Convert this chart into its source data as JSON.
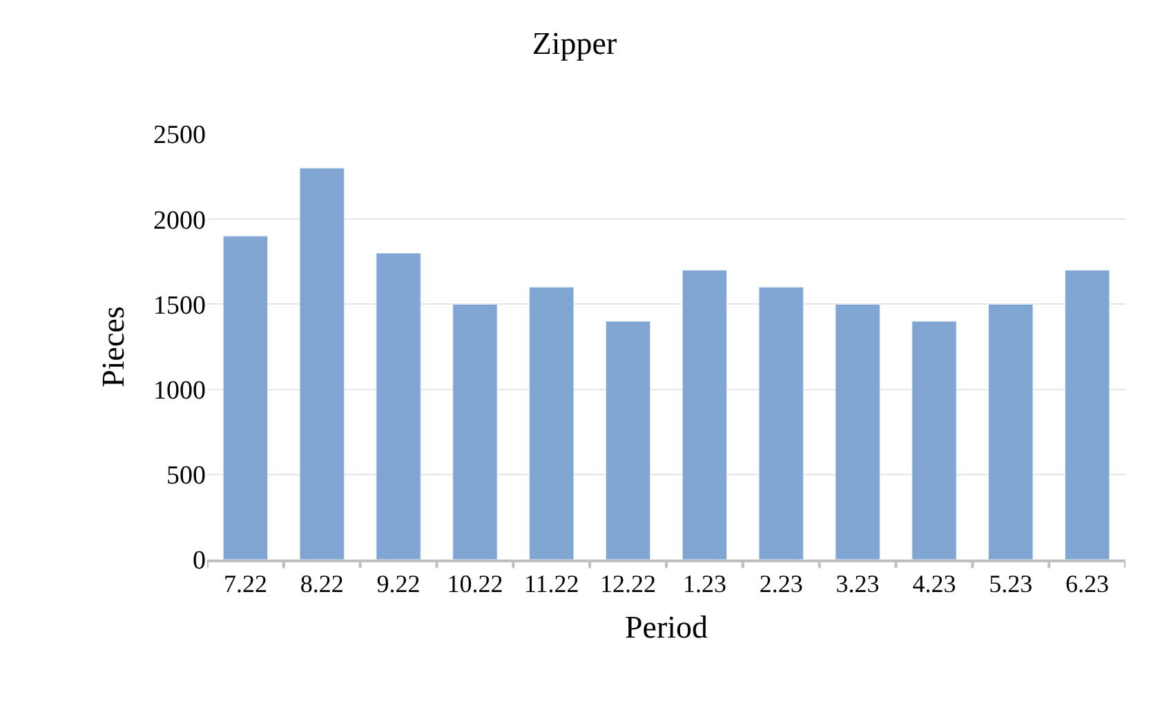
{
  "chart_data": {
    "type": "bar",
    "title": "Zipper",
    "xlabel": "Period",
    "ylabel": "Pieces",
    "categories": [
      "7.22",
      "8.22",
      "9.22",
      "10.22",
      "11.22",
      "12.22",
      "1.23",
      "2.23",
      "3.23",
      "4.23",
      "5.23",
      "6.23"
    ],
    "series": [
      {
        "color": "#7fa5d2",
        "values": [
          1900,
          2300,
          1800,
          1500,
          1600,
          1400,
          1700,
          1600,
          1500,
          1400,
          1500,
          1700
        ]
      }
    ],
    "ylim": [
      0,
      2500
    ],
    "yticks": [
      0,
      500,
      1000,
      1500,
      2000,
      2500
    ],
    "grid": "y"
  }
}
